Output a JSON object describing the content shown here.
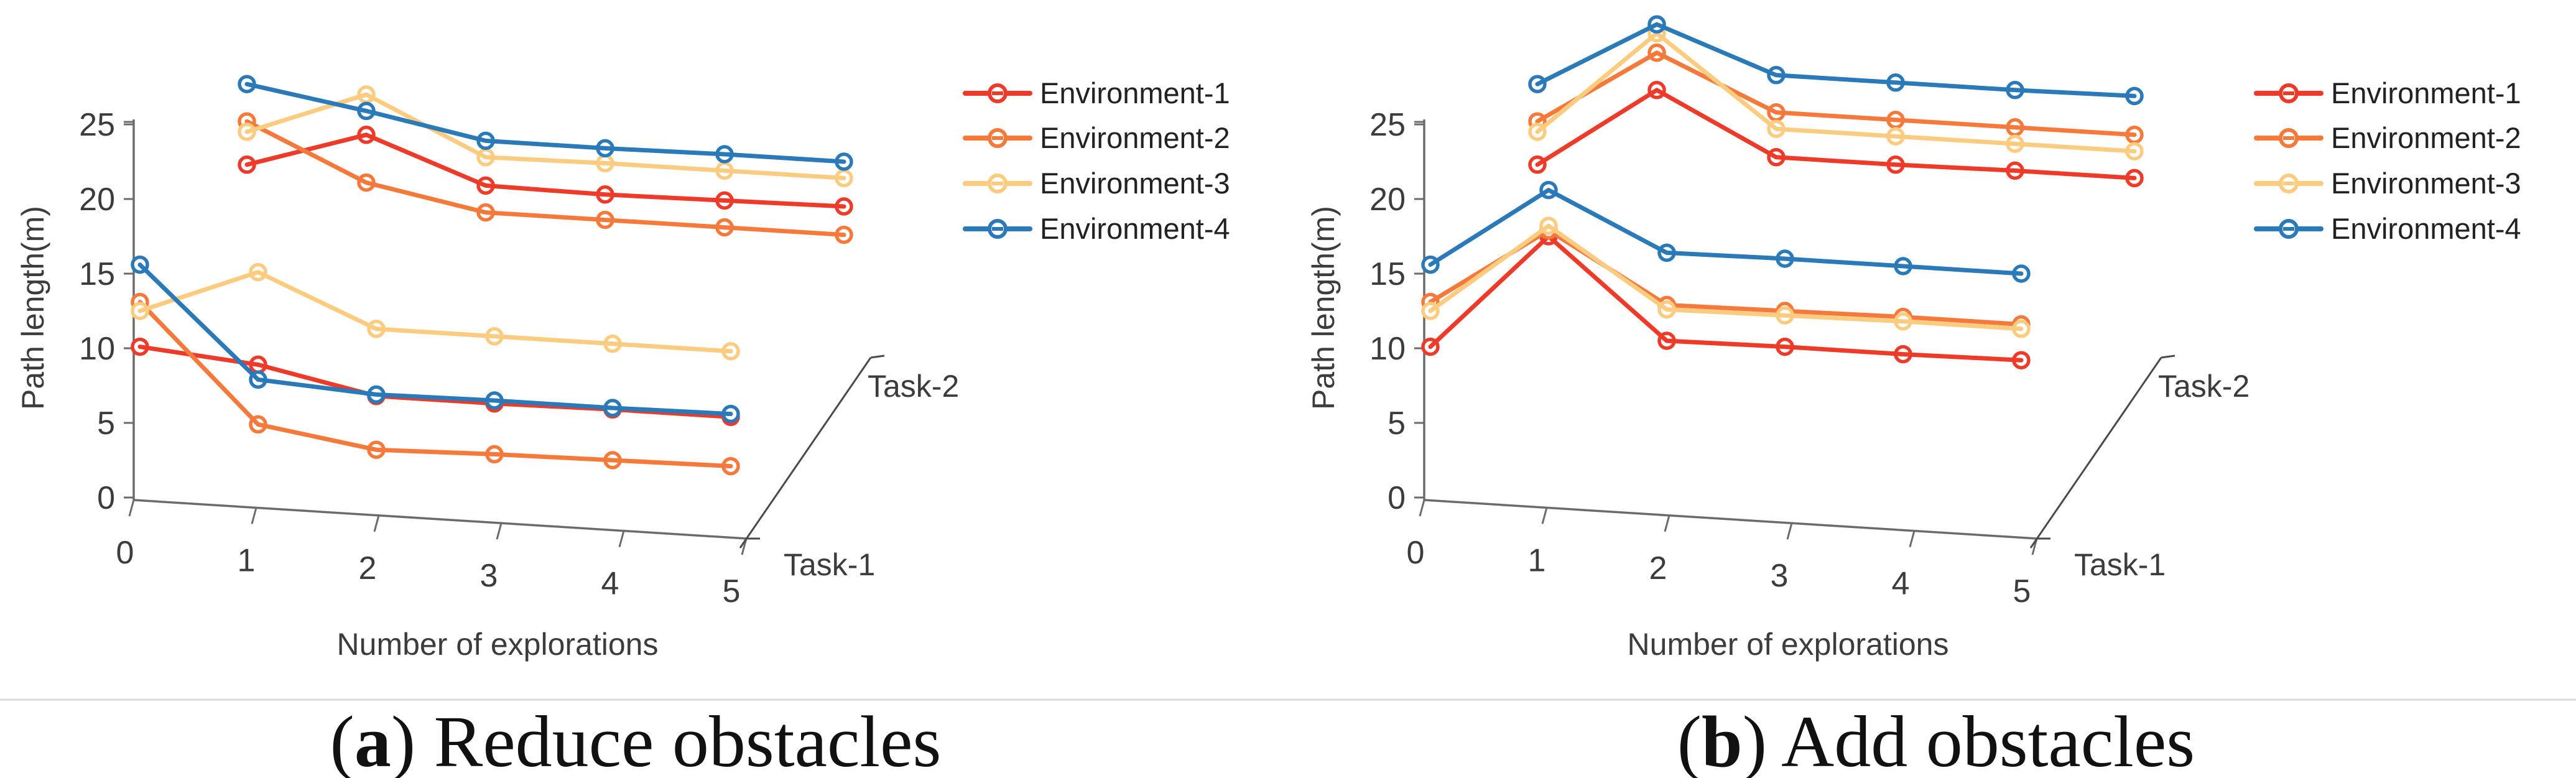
{
  "figure": {
    "background": "#ffffff",
    "separator_color": "#dadada"
  },
  "colors": {
    "Environment-1": "#ee3a28",
    "Environment-2": "#f5793b",
    "Environment-3": "#fbcc80",
    "Environment-4": "#2a79b9",
    "axis": "#6b6b6b",
    "tick_text": "#3c3c3c"
  },
  "chart_data": [
    {
      "type": "line",
      "panel_label": {
        "open": "(",
        "letter": "a",
        "rest": ") Reduce obstacles"
      },
      "xlabel": "Number of explorations",
      "ylabel": "Path length(m)",
      "x": [
        0,
        1,
        2,
        3,
        4,
        5
      ],
      "xtick_labels": [
        "0",
        "1",
        "2",
        "3",
        "4",
        "5"
      ],
      "yticks": [
        0,
        5,
        10,
        15,
        20,
        25
      ],
      "ylim": [
        0,
        25
      ],
      "xlim": [
        0,
        5
      ],
      "grid": false,
      "legend_position": "right-of-plot",
      "depth_axis": {
        "near": "Task-1",
        "far": "Task-2"
      },
      "legend": [
        "Environment-1",
        "Environment-2",
        "Environment-3",
        "Environment-4"
      ],
      "series": [
        {
          "name": "Environment-1",
          "task": "Task-1",
          "values": [
            10.1,
            8.9,
            6.8,
            6.3,
            5.9,
            5.4
          ]
        },
        {
          "name": "Environment-2",
          "task": "Task-1",
          "values": [
            13.1,
            4.9,
            3.2,
            2.9,
            2.5,
            2.1
          ]
        },
        {
          "name": "Environment-3",
          "task": "Task-1",
          "values": [
            12.5,
            15.1,
            11.3,
            10.8,
            10.3,
            9.8
          ]
        },
        {
          "name": "Environment-4",
          "task": "Task-1",
          "values": [
            15.6,
            7.9,
            6.9,
            6.5,
            6.0,
            5.6
          ]
        },
        {
          "name": "Environment-1",
          "task": "Task-2",
          "values": [
            22.3,
            24.3,
            20.9,
            20.3,
            19.9,
            19.5
          ]
        },
        {
          "name": "Environment-2",
          "task": "Task-2",
          "values": [
            25.2,
            21.1,
            19.1,
            18.6,
            18.1,
            17.6
          ]
        },
        {
          "name": "Environment-3",
          "task": "Task-2",
          "values": [
            24.5,
            27.0,
            22.8,
            22.4,
            21.9,
            21.4
          ]
        },
        {
          "name": "Environment-4",
          "task": "Task-2",
          "values": [
            27.7,
            25.9,
            23.9,
            23.4,
            23.0,
            22.5
          ]
        }
      ],
      "note": "Task-2 values are read against the front y-axis; the 3-D perspective draws the Task-2 row shifted up and to the right."
    },
    {
      "type": "line",
      "panel_label": {
        "open": "(",
        "letter": "b",
        "rest": ") Add obstacles"
      },
      "xlabel": "Number of explorations",
      "ylabel": "Path length(m)",
      "x": [
        0,
        1,
        2,
        3,
        4,
        5
      ],
      "xtick_labels": [
        "0",
        "1",
        "2",
        "3",
        "4",
        "5"
      ],
      "yticks": [
        0,
        5,
        10,
        15,
        20,
        25
      ],
      "ylim": [
        0,
        25
      ],
      "xlim": [
        0,
        5
      ],
      "grid": false,
      "legend_position": "right-of-plot",
      "depth_axis": {
        "near": "Task-1",
        "far": "Task-2"
      },
      "legend": [
        "Environment-1",
        "Environment-2",
        "Environment-3",
        "Environment-4"
      ],
      "series": [
        {
          "name": "Environment-1",
          "task": "Task-1",
          "values": [
            10.1,
            17.5,
            10.5,
            10.1,
            9.6,
            9.2
          ]
        },
        {
          "name": "Environment-2",
          "task": "Task-1",
          "values": [
            13.1,
            17.9,
            12.9,
            12.5,
            12.1,
            11.6
          ]
        },
        {
          "name": "Environment-3",
          "task": "Task-1",
          "values": [
            12.5,
            18.2,
            12.6,
            12.2,
            11.8,
            11.3
          ]
        },
        {
          "name": "Environment-4",
          "task": "Task-1",
          "values": [
            15.6,
            20.6,
            16.4,
            16.0,
            15.5,
            15.0
          ]
        },
        {
          "name": "Environment-1",
          "task": "Task-2",
          "values": [
            22.3,
            27.3,
            22.8,
            22.3,
            21.9,
            21.4
          ]
        },
        {
          "name": "Environment-2",
          "task": "Task-2",
          "values": [
            25.2,
            29.8,
            25.8,
            25.3,
            24.8,
            24.3
          ]
        },
        {
          "name": "Environment-3",
          "task": "Task-2",
          "values": [
            24.5,
            31.1,
            24.7,
            24.2,
            23.7,
            23.2
          ]
        },
        {
          "name": "Environment-4",
          "task": "Task-2",
          "values": [
            27.7,
            31.7,
            28.3,
            27.8,
            27.3,
            26.9
          ]
        }
      ],
      "note": "Task-2 values are read against the front y-axis; the 3-D perspective draws the Task-2 row shifted up and to the right."
    }
  ]
}
